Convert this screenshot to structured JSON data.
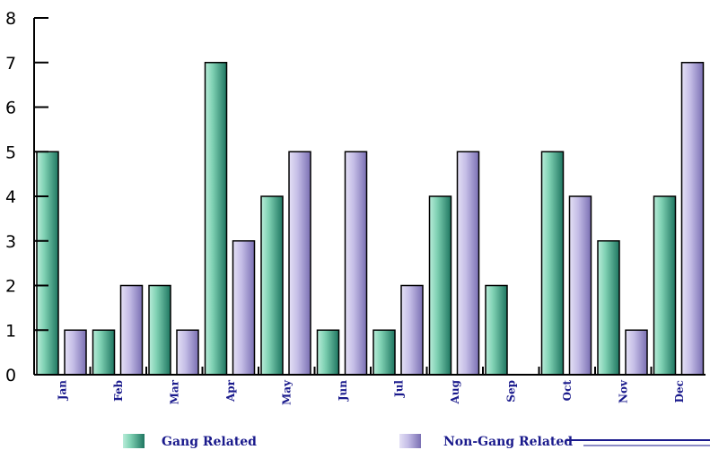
{
  "chart_data": {
    "type": "bar",
    "title": "",
    "xlabel": "",
    "ylabel": "",
    "categories": [
      "Jan",
      "Feb",
      "Mar",
      "Apr",
      "May",
      "Jun",
      "Jul",
      "Aug",
      "Sep",
      "Oct",
      "Nov",
      "Dec"
    ],
    "yticks": [
      "0",
      "1",
      "2",
      "3",
      "4",
      "5",
      "6",
      "7",
      "8"
    ],
    "ylim": [
      0,
      8
    ],
    "grid": false,
    "legend_position": "bottom",
    "series": [
      {
        "name": "Gang Related",
        "values": [
          5,
          1,
          2,
          7,
          4,
          1,
          1,
          4,
          2,
          5,
          3,
          4
        ],
        "color": "#3fae8e"
      },
      {
        "name": "Non-Gang Related",
        "values": [
          1,
          2,
          1,
          3,
          5,
          5,
          2,
          5,
          0,
          4,
          1,
          7
        ],
        "color": "#a89fd0"
      }
    ]
  }
}
